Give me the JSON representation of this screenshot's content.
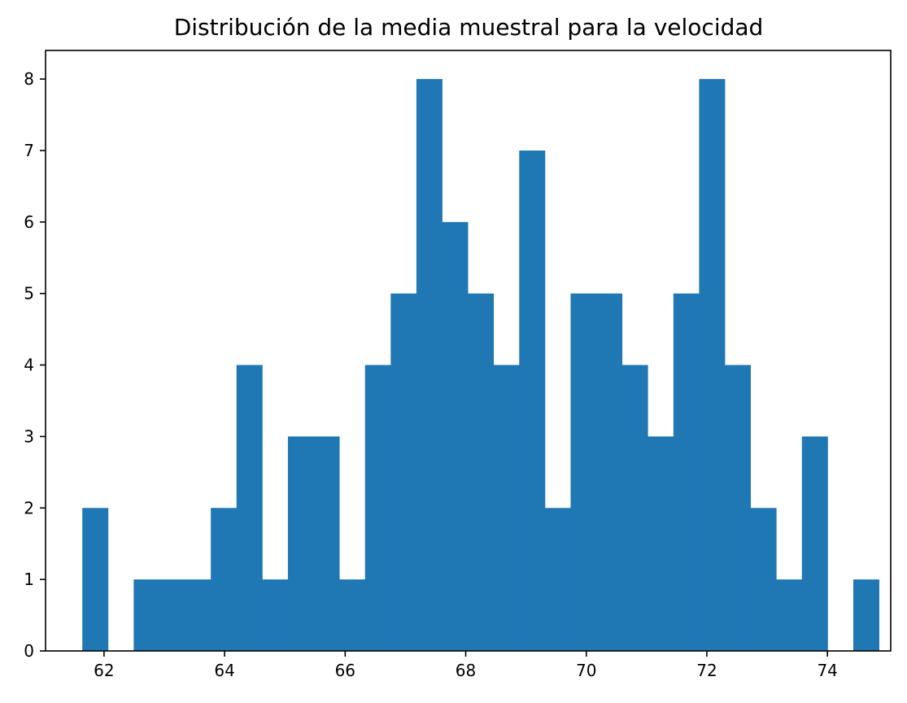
{
  "chart_data": {
    "type": "bar",
    "title": "Distribución de la media muestral para la velocidad",
    "xlabel": "",
    "ylabel": "",
    "xlim": [
      61.03,
      75.05
    ],
    "ylim": [
      0,
      8.4
    ],
    "xticks": [
      62,
      64,
      66,
      68,
      70,
      72,
      74
    ],
    "yticks": [
      0,
      1,
      2,
      3,
      4,
      5,
      6,
      7,
      8
    ],
    "bin_start": 61.64,
    "bin_width": 0.4263,
    "counts": [
      2,
      0,
      1,
      1,
      1,
      2,
      4,
      1,
      3,
      3,
      1,
      4,
      5,
      8,
      6,
      5,
      4,
      7,
      2,
      5,
      5,
      4,
      3,
      5,
      8,
      4,
      2,
      1,
      3,
      0,
      1
    ],
    "bar_color": "#1f77b4",
    "grid": false,
    "legend": "none"
  }
}
